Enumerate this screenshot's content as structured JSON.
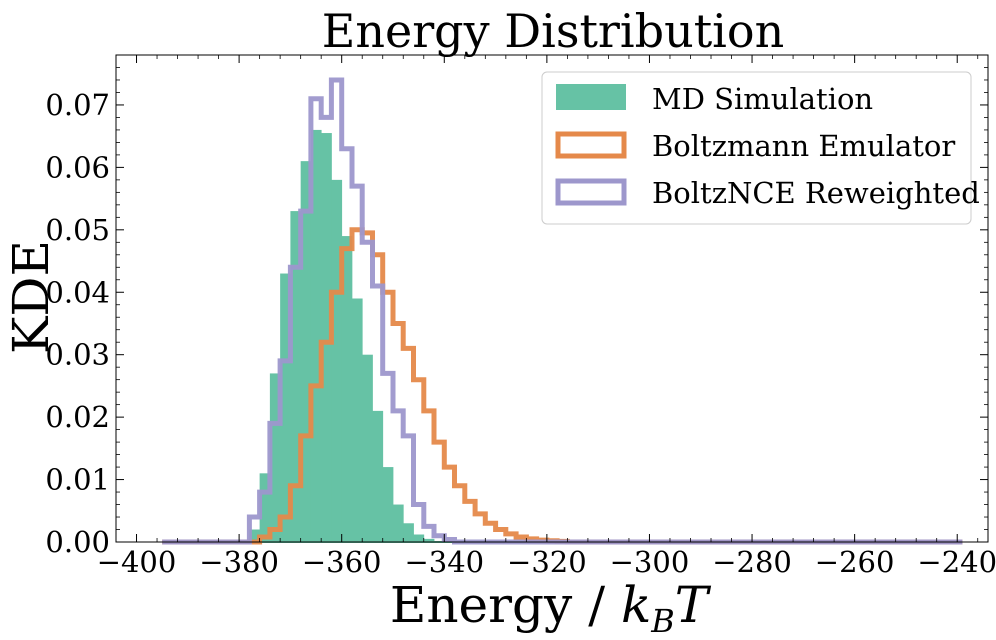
{
  "chart_data": {
    "type": "histogram",
    "title": "Energy Distribution",
    "xlabel": "Energy / k_B T",
    "ylabel": "KDE",
    "xlim": [
      -404,
      -234
    ],
    "ylim": [
      0,
      0.078
    ],
    "xticks": [
      -400,
      -380,
      -360,
      -340,
      -320,
      -300,
      -280,
      -260,
      -240
    ],
    "xtick_labels": [
      "−400",
      "−380",
      "−360",
      "−340",
      "−320",
      "−300",
      "−280",
      "−260",
      "−240"
    ],
    "yticks": [
      0,
      0.01,
      0.02,
      0.03,
      0.04,
      0.05,
      0.06,
      0.07
    ],
    "ytick_labels": [
      "0.00",
      "0.01",
      "0.02",
      "0.03",
      "0.04",
      "0.05",
      "0.06",
      "0.07"
    ],
    "bin_range": [
      -395,
      -239
    ],
    "grid": false,
    "legend_position": "top-right",
    "series": [
      {
        "name": "MD Simulation",
        "style": "filled",
        "color": "#66c2a5",
        "bins": [
          {
            "x0": -378,
            "x1": -376,
            "y": 0.002
          },
          {
            "x0": -376,
            "x1": -374,
            "y": 0.011
          },
          {
            "x0": -374,
            "x1": -372,
            "y": 0.027
          },
          {
            "x0": -372,
            "x1": -370,
            "y": 0.043
          },
          {
            "x0": -370,
            "x1": -368,
            "y": 0.053
          },
          {
            "x0": -368,
            "x1": -366,
            "y": 0.061
          },
          {
            "x0": -366,
            "x1": -364,
            "y": 0.066
          },
          {
            "x0": -364,
            "x1": -362,
            "y": 0.0655
          },
          {
            "x0": -362,
            "x1": -360,
            "y": 0.058
          },
          {
            "x0": -360,
            "x1": -358,
            "y": 0.049
          },
          {
            "x0": -358,
            "x1": -356,
            "y": 0.039
          },
          {
            "x0": -356,
            "x1": -354,
            "y": 0.03
          },
          {
            "x0": -354,
            "x1": -352,
            "y": 0.021
          },
          {
            "x0": -352,
            "x1": -350,
            "y": 0.012
          },
          {
            "x0": -350,
            "x1": -348,
            "y": 0.006
          },
          {
            "x0": -348,
            "x1": -346,
            "y": 0.003
          },
          {
            "x0": -346,
            "x1": -344,
            "y": 0.0012
          },
          {
            "x0": -344,
            "x1": -342,
            "y": 0.0005
          }
        ]
      },
      {
        "name": "Boltzmann Emulator",
        "style": "step",
        "color": "#e5894a",
        "points": [
          [
            -395,
            0
          ],
          [
            -378,
            0
          ],
          [
            -376,
            0.0008
          ],
          [
            -374,
            0.002
          ],
          [
            -372,
            0.004
          ],
          [
            -370,
            0.009
          ],
          [
            -368,
            0.017
          ],
          [
            -366,
            0.025
          ],
          [
            -364,
            0.032
          ],
          [
            -362,
            0.04
          ],
          [
            -360,
            0.047
          ],
          [
            -358,
            0.05
          ],
          [
            -356,
            0.0495
          ],
          [
            -354,
            0.046
          ],
          [
            -352,
            0.04
          ],
          [
            -350,
            0.035
          ],
          [
            -348,
            0.031
          ],
          [
            -346,
            0.026
          ],
          [
            -344,
            0.021
          ],
          [
            -342,
            0.016
          ],
          [
            -340,
            0.012
          ],
          [
            -338,
            0.009
          ],
          [
            -336,
            0.0065
          ],
          [
            -334,
            0.0045
          ],
          [
            -332,
            0.003
          ],
          [
            -330,
            0.002
          ],
          [
            -328,
            0.0013
          ],
          [
            -326,
            0.0008
          ],
          [
            -324,
            0.0005
          ],
          [
            -322,
            0.0003
          ],
          [
            -320,
            0.0002
          ],
          [
            -318,
            0.0001
          ],
          [
            -316,
            0
          ],
          [
            -239,
            0
          ]
        ]
      },
      {
        "name": "BoltzNCE Reweighted",
        "style": "step",
        "color": "#9d97cc",
        "points": [
          [
            -395,
            0
          ],
          [
            -380,
            0
          ],
          [
            -378,
            0.004
          ],
          [
            -376,
            0.008
          ],
          [
            -374,
            0.019
          ],
          [
            -372,
            0.029
          ],
          [
            -370,
            0.044
          ],
          [
            -368,
            0.053
          ],
          [
            -366,
            0.071
          ],
          [
            -364,
            0.068
          ],
          [
            -362,
            0.074
          ],
          [
            -360,
            0.063
          ],
          [
            -358,
            0.057
          ],
          [
            -356,
            0.048
          ],
          [
            -354,
            0.041
          ],
          [
            -352,
            0.027
          ],
          [
            -350,
            0.021
          ],
          [
            -348,
            0.017
          ],
          [
            -346,
            0.006
          ],
          [
            -344,
            0.0025
          ],
          [
            -342,
            0.001
          ],
          [
            -340,
            0.0004
          ],
          [
            -338,
            0
          ],
          [
            -239,
            0
          ]
        ]
      }
    ]
  }
}
